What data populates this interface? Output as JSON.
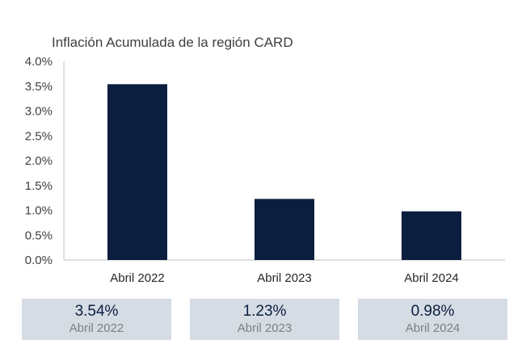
{
  "chart_data": {
    "type": "bar",
    "title": "Inflación Acumulada de la región CARD",
    "categories": [
      "Abril 2022",
      "Abril 2023",
      "Abril 2024"
    ],
    "values": [
      3.54,
      1.23,
      0.98
    ],
    "ylim": [
      0,
      4.0
    ],
    "yticks": [
      "0.0%",
      "0.5%",
      "1.0%",
      "1.5%",
      "2.0%",
      "2.5%",
      "3.0%",
      "3.5%",
      "4.0%"
    ],
    "bar_color": "#0b1e3f",
    "grid": false,
    "legend": "none"
  },
  "summary_cards": [
    {
      "value": "3.54%",
      "label": "Abril 2022"
    },
    {
      "value": "1.23%",
      "label": "Abril 2023"
    },
    {
      "value": "0.98%",
      "label": "Abril 2024"
    }
  ],
  "colors": {
    "card_background": "#d6dce4",
    "card_value_text": "#0b1e3f",
    "card_label_text": "#7f7f7f"
  }
}
